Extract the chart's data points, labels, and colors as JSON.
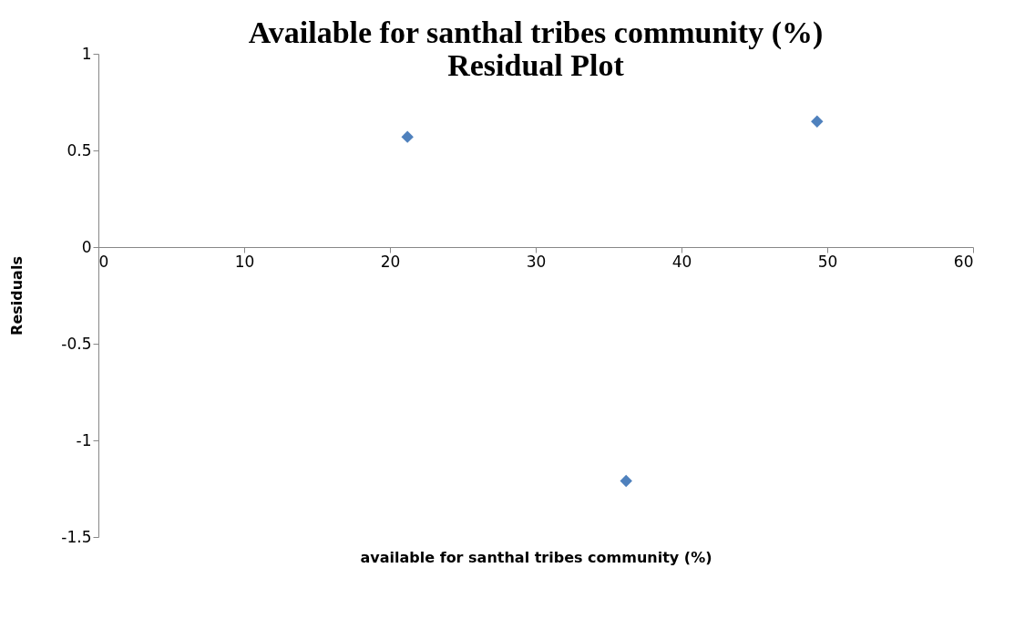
{
  "chart_data": {
    "type": "scatter",
    "title": "Available for santhal tribes  community  (%)  Residual Plot",
    "xlabel": "available for santhal tribes  community  (%)",
    "ylabel": "Residuals",
    "x": [
      21.2,
      36.2,
      49.3
    ],
    "series": [
      {
        "color": "#4f81bd",
        "values": [
          0.57,
          -1.21,
          0.65
        ]
      }
    ],
    "xlim": [
      0,
      60
    ],
    "xticks": [
      0,
      10,
      20,
      30,
      40,
      50,
      60
    ],
    "ylim": [
      -1.5,
      1
    ],
    "yticks": [
      -1.5,
      -1,
      -0.5,
      0,
      0.5,
      1
    ],
    "grid": false,
    "marker": "diamond"
  }
}
